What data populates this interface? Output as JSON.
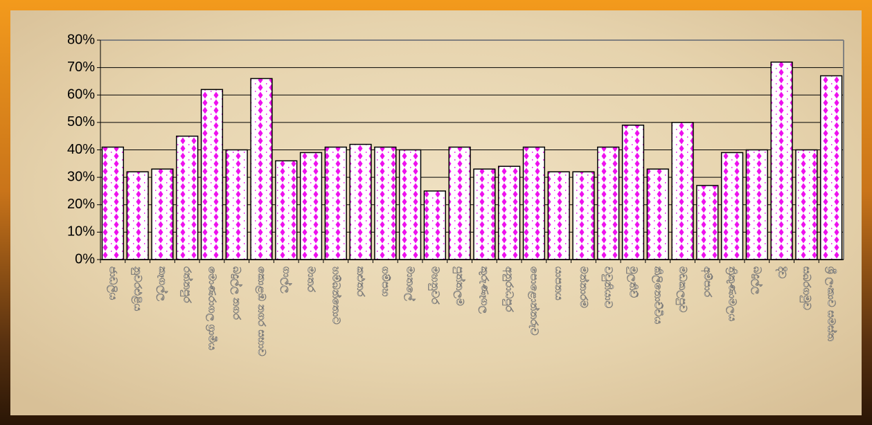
{
  "chart_data": {
    "type": "bar",
    "categories": [
      "ජාඩලිය",
      "නුවරඑළිය",
      "කෑගල්ල",
      "රත්නපුර",
      "මොණරාගල ග්‍රාමීය",
      "බදුල්ල නගර",
      "කොළඹ නගර සභාව",
      "ගාල්ල",
      "මාතර",
      "හම්බන්තොට",
      "කළුතර",
      "ගම්පහ",
      "මාතලේ",
      "මහනුවර",
      "පුත්තලම",
      "කුරුණෑගල",
      "අනුරාධපුර",
      "පොළොන්නරුව",
      "යාපනය",
      "මන්නාරම",
      "වවුනියාව",
      "මුලතිව්",
      "කිලිනොච්චිය",
      "මඩකලපුව",
      "අම්පාර",
      "ත්‍රිකුණාමලය",
      "බදුල්ල",
      "දිව",
      "සබරගමුව",
      "ශ්‍රී ලංකාව සමස්ත"
    ],
    "values": [
      41,
      32,
      33,
      45,
      62,
      40,
      66,
      36,
      39,
      41,
      42,
      41,
      40,
      25,
      41,
      33,
      34,
      41,
      32,
      32,
      41,
      49,
      33,
      50,
      27,
      39,
      40,
      72,
      40,
      67
    ],
    "ylim": [
      0,
      80
    ],
    "yticks": [
      {
        "value": 0,
        "label": "0%"
      },
      {
        "value": 10,
        "label": "10%"
      },
      {
        "value": 20,
        "label": "20%"
      },
      {
        "value": 30,
        "label": "30%"
      },
      {
        "value": 40,
        "label": "40%"
      },
      {
        "value": 50,
        "label": "50%"
      },
      {
        "value": 60,
        "label": "60%"
      },
      {
        "value": 70,
        "label": "70%"
      },
      {
        "value": 80,
        "label": "80%"
      }
    ],
    "grid": true
  }
}
